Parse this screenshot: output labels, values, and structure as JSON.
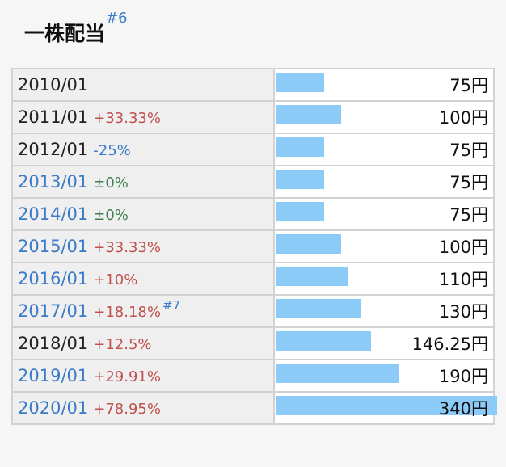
{
  "heading": {
    "title": "一株配当",
    "footnote": "#6"
  },
  "chart_data": {
    "type": "bar",
    "orientation": "horizontal",
    "unit": "円",
    "max_value": 340,
    "colors": {
      "bar": "#8ccaf8",
      "increase": "#c0504d",
      "decrease": "#3a7bc8",
      "unchanged": "#3f7f52",
      "link": "#3a7bc8"
    },
    "rows": [
      {
        "year": "2010/01",
        "change": "",
        "direction": "",
        "linked": false,
        "note": "",
        "value": 75,
        "display": "75円"
      },
      {
        "year": "2011/01",
        "change": "+33.33%",
        "direction": "up",
        "linked": false,
        "note": "",
        "value": 100,
        "display": "100円"
      },
      {
        "year": "2012/01",
        "change": "-25%",
        "direction": "down",
        "linked": false,
        "note": "",
        "value": 75,
        "display": "75円"
      },
      {
        "year": "2013/01",
        "change": "±0%",
        "direction": "flat",
        "linked": true,
        "note": "",
        "value": 75,
        "display": "75円"
      },
      {
        "year": "2014/01",
        "change": "±0%",
        "direction": "flat",
        "linked": true,
        "note": "",
        "value": 75,
        "display": "75円"
      },
      {
        "year": "2015/01",
        "change": "+33.33%",
        "direction": "up",
        "linked": true,
        "note": "",
        "value": 100,
        "display": "100円"
      },
      {
        "year": "2016/01",
        "change": "+10%",
        "direction": "up",
        "linked": true,
        "note": "",
        "value": 110,
        "display": "110円"
      },
      {
        "year": "2017/01",
        "change": "+18.18%",
        "direction": "up",
        "linked": true,
        "note": "#7",
        "value": 130,
        "display": "130円"
      },
      {
        "year": "2018/01",
        "change": "+12.5%",
        "direction": "up",
        "linked": false,
        "note": "",
        "value": 146.25,
        "display": "146.25円"
      },
      {
        "year": "2019/01",
        "change": "+29.91%",
        "direction": "up",
        "linked": true,
        "note": "",
        "value": 190,
        "display": "190円"
      },
      {
        "year": "2020/01",
        "change": "+78.95%",
        "direction": "up",
        "linked": true,
        "note": "",
        "value": 340,
        "display": "340円"
      }
    ]
  }
}
